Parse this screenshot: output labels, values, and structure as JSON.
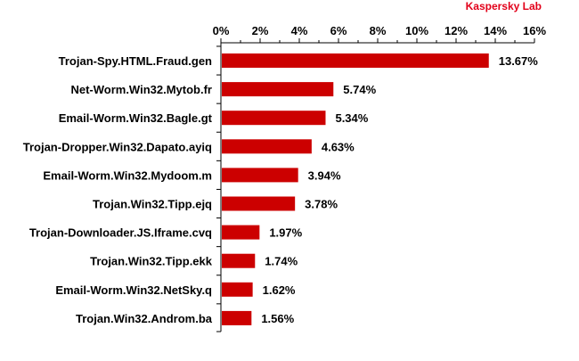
{
  "brand": {
    "label": "Kaspersky Lab",
    "color": "#e2001a"
  },
  "chart_data": {
    "type": "bar",
    "orientation": "horizontal",
    "title": "",
    "xlabel": "",
    "ylabel": "",
    "categories": [
      "Trojan-Spy.HTML.Fraud.gen",
      "Net-Worm.Win32.Mytob.fr",
      "Email-Worm.Win32.Bagle.gt",
      "Trojan-Dropper.Win32.Dapato.ayiq",
      "Email-Worm.Win32.Mydoom.m",
      "Trojan.Win32.Tipp.ejq",
      "Trojan-Downloader.JS.Iframe.cvq",
      "Trojan.Win32.Tipp.ekk",
      "Email-Worm.Win32.NetSky.q",
      "Trojan.Win32.Androm.ba"
    ],
    "values": [
      13.67,
      5.74,
      5.34,
      4.63,
      3.94,
      3.78,
      1.97,
      1.74,
      1.62,
      1.56
    ],
    "value_labels": [
      "13.67%",
      "5.74%",
      "5.34%",
      "4.63%",
      "3.94%",
      "3.78%",
      "1.97%",
      "1.74%",
      "1.62%",
      "1.56%"
    ],
    "xlim": [
      0,
      16
    ],
    "xticks": [
      0,
      2,
      4,
      6,
      8,
      10,
      12,
      14,
      16
    ],
    "xtick_labels": [
      "0%",
      "2%",
      "4%",
      "6%",
      "8%",
      "10%",
      "12%",
      "14%",
      "16%"
    ],
    "axis_position": "top",
    "grid": false,
    "legend": "none",
    "bar_color": "#cc0000"
  }
}
